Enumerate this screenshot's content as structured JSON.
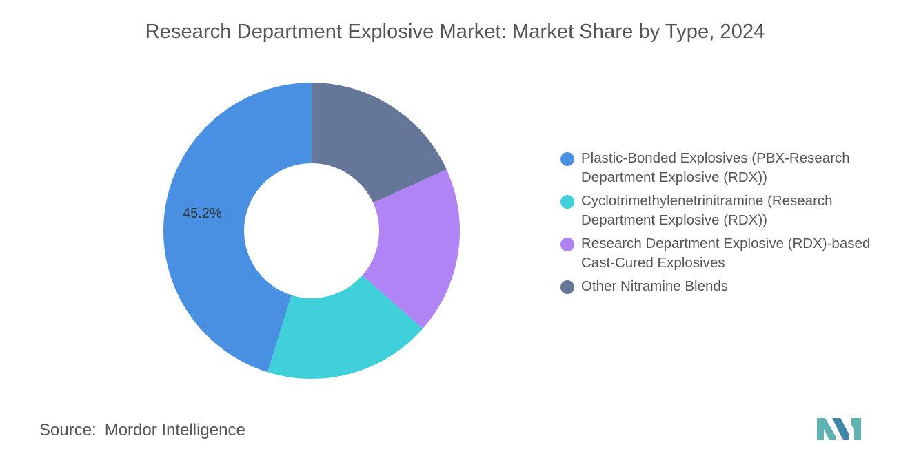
{
  "title": "Research Department Explosive Market: Market Share by Type, 2024",
  "source": {
    "label": "Source:",
    "value": "Mordor Intelligence"
  },
  "logo": {
    "name": "mordor-intelligence-logo",
    "color": "#5fb3b3"
  },
  "chart_data": {
    "type": "pie",
    "subtype": "donut",
    "title": "Research Department Explosive Market: Market Share by Type, 2024",
    "start_angle_deg": 0,
    "direction": "counterclockwise",
    "legend_position": "right",
    "categories": [
      "Plastic-Bonded Explosives (PBX-Research Department Explosive (RDX))",
      "Cyclotrimethylenetrinitramine (Research Department Explosive (RDX))",
      "Research Department Explosive (RDX)-based Cast-Cured Explosives",
      "Other Nitramine Blends"
    ],
    "values": [
      45.2,
      18.3,
      18.3,
      18.2
    ],
    "colors": [
      "#4a90e2",
      "#3fd0da",
      "#b084f5",
      "#657799"
    ],
    "data_labels": [
      {
        "category_index": 0,
        "text": "45.2%"
      }
    ]
  }
}
